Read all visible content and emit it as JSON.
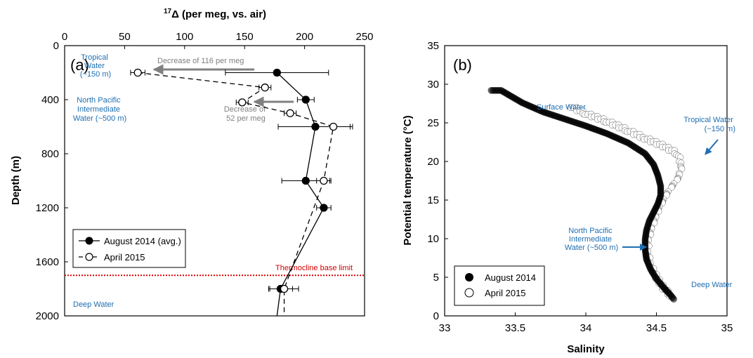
{
  "colors": {
    "axis": "#000000",
    "annotation_blue": "#1f6fb2",
    "arrow_gray": "#808080",
    "thermocline_red": "#e00000",
    "marker_fill": "#000000",
    "marker_open": "#ffffff"
  },
  "chart_data": [
    {
      "panel": "(a)",
      "type": "line",
      "xlabel_super": "17",
      "xlabel_main": "Δ (per meg, vs. air)",
      "ylabel": "Depth (m)",
      "xlim": [
        0,
        250
      ],
      "ylim": [
        0,
        2000
      ],
      "y_inverted": true,
      "x_axis_position": "top",
      "x_ticks": [
        0,
        50,
        100,
        150,
        200,
        250
      ],
      "y_ticks": [
        0,
        400,
        800,
        1200,
        1600,
        2000
      ],
      "series": [
        {
          "name": "August 2014 (avg.)",
          "marker": "filled-circle",
          "line": "solid",
          "points": [
            {
              "x": 177,
              "y": 200,
              "xerr": 43
            },
            {
              "x": 201,
              "y": 400,
              "xerr": 7
            },
            {
              "x": 209,
              "y": 600,
              "xerr": 31
            },
            {
              "x": 201,
              "y": 1000,
              "xerr": 20
            },
            {
              "x": 216,
              "y": 1200,
              "xerr": 6
            },
            {
              "x": 180,
              "y": 1800,
              "xerr": 10
            },
            {
              "x": 177,
              "y": 2000,
              "xerr": 0,
              "hidden": true
            }
          ]
        },
        {
          "name": "April 2015",
          "marker": "open-circle",
          "line": "dashed",
          "points": [
            {
              "x": 61,
              "y": 200,
              "xerr": 6
            },
            {
              "x": 167,
              "y": 310,
              "xerr": 5
            },
            {
              "x": 148,
              "y": 420,
              "xerr": 5
            },
            {
              "x": 188,
              "y": 500,
              "xerr": 5
            },
            {
              "x": 224,
              "y": 600,
              "xerr": 14
            },
            {
              "x": 216,
              "y": 1000,
              "xerr": 6
            },
            {
              "x": 183,
              "y": 1800,
              "xerr": 12
            },
            {
              "x": 183,
              "y": 2000,
              "xerr": 0,
              "hidden": true
            }
          ]
        }
      ],
      "annotations": {
        "tropical_water": [
          "Tropical",
          "Water",
          "(~150 m)"
        ],
        "npiw": [
          "North Pacific",
          "Intermediate",
          "Water (~500 m)"
        ],
        "deep_water": "Deep Water",
        "decrease_116": "Decrease of 116 per meg",
        "decrease_52": [
          "Decrease of",
          "52 per meg"
        ],
        "thermocline": "Thermocline base limit",
        "thermocline_depth": 1700
      },
      "legend_placement": "bottom-left"
    },
    {
      "panel": "(b)",
      "type": "scatter",
      "xlabel": "Salinity",
      "ylabel": "Potential temperature (°C)",
      "xlim": [
        33,
        35
      ],
      "ylim": [
        0,
        35
      ],
      "x_ticks": [
        33,
        33.5,
        34,
        34.5,
        35
      ],
      "x_tick_labels": [
        "33",
        "33.5",
        "34",
        "34.5",
        "35"
      ],
      "y_ticks": [
        0,
        5,
        10,
        15,
        20,
        25,
        30,
        35
      ],
      "series": [
        {
          "name": "August 2014",
          "marker": "filled-circle",
          "path": [
            [
              33.33,
              29.2
            ],
            [
              33.4,
              29.2
            ],
            [
              33.55,
              27.6
            ],
            [
              33.7,
              26.4
            ],
            [
              33.85,
              25.5
            ],
            [
              34.0,
              24.6
            ],
            [
              34.15,
              23.6
            ],
            [
              34.3,
              22.4
            ],
            [
              34.42,
              21.0
            ],
            [
              34.48,
              19.6
            ],
            [
              34.51,
              18.2
            ],
            [
              34.53,
              16.8
            ],
            [
              34.53,
              15.6
            ],
            [
              34.51,
              14.5
            ],
            [
              34.48,
              13.4
            ],
            [
              34.45,
              12.3
            ],
            [
              34.43,
              11.1
            ],
            [
              34.42,
              9.9
            ],
            [
              34.42,
              8.6
            ],
            [
              34.43,
              7.3
            ],
            [
              34.46,
              6.0
            ],
            [
              34.5,
              4.8
            ],
            [
              34.55,
              3.7
            ],
            [
              34.6,
              2.7
            ],
            [
              34.63,
              2.0
            ]
          ]
        },
        {
          "name": "April 2015",
          "marker": "open-circle",
          "path": [
            [
              33.9,
              27.1
            ],
            [
              34.0,
              26.2
            ],
            [
              34.15,
              25.2
            ],
            [
              34.3,
              24.0
            ],
            [
              34.42,
              23.0
            ],
            [
              34.55,
              22.0
            ],
            [
              34.65,
              21.0
            ],
            [
              34.68,
              19.5
            ],
            [
              34.66,
              18.0
            ],
            [
              34.62,
              17.0
            ],
            [
              34.58,
              16.0
            ],
            [
              34.55,
              15.0
            ],
            [
              34.52,
              14.0
            ],
            [
              34.49,
              12.5
            ],
            [
              34.46,
              11.0
            ],
            [
              34.44,
              9.5
            ],
            [
              34.44,
              8.0
            ],
            [
              34.46,
              6.5
            ],
            [
              34.5,
              5.0
            ],
            [
              34.55,
              3.6
            ],
            [
              34.6,
              2.7
            ],
            [
              34.62,
              2.1
            ]
          ]
        }
      ],
      "annotations": {
        "surface_water": "Surface Water",
        "tropical_water": [
          "Tropical Water",
          "(~150 m)"
        ],
        "npiw": [
          "North Pacific",
          "Intermediate",
          "Water (~500 m)"
        ],
        "deep_water": "Deep Water"
      },
      "legend_placement": "bottom-left"
    }
  ]
}
